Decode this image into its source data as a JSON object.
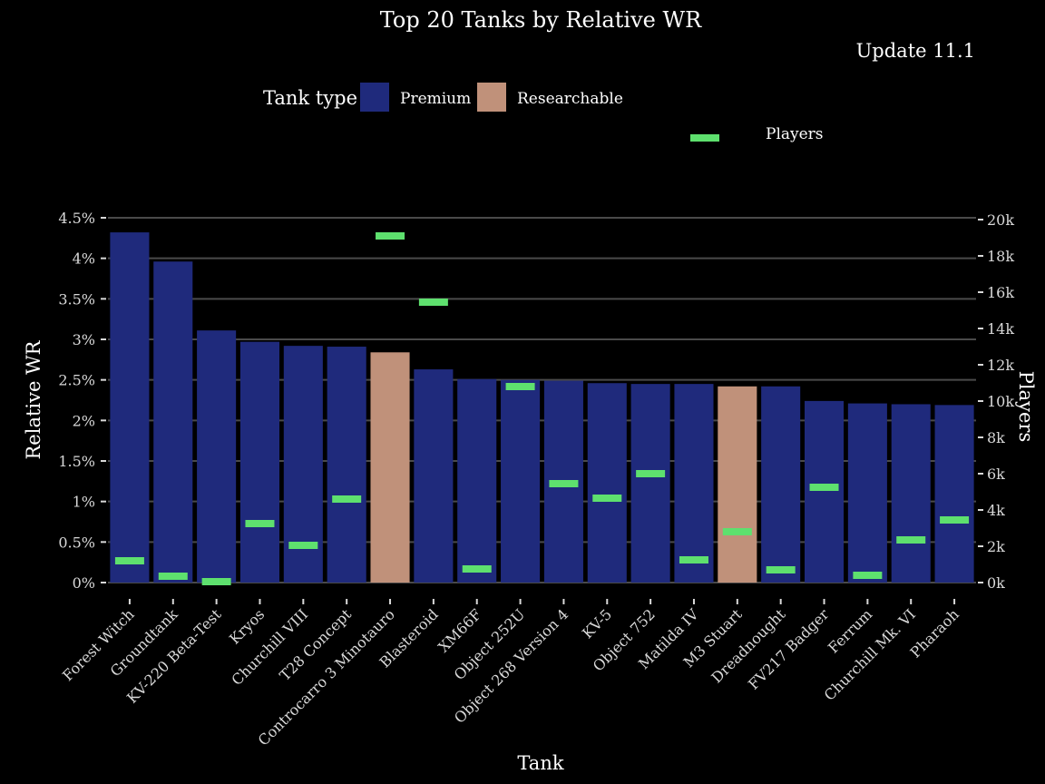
{
  "chart_data": {
    "type": "bar",
    "title": "Top 20 Tanks by Relative WR",
    "subtitle": "Update 11.1",
    "xlabel": "Tank",
    "ylabel": "Relative WR",
    "y2label": "Players",
    "ylim": [
      0,
      4.5
    ],
    "y2lim": [
      0,
      20000
    ],
    "yticks": [
      "0%",
      "0.5%",
      "1%",
      "1.5%",
      "2%",
      "2.5%",
      "3%",
      "3.5%",
      "4%",
      "4.5%"
    ],
    "y2ticks": [
      "0k",
      "2k",
      "4k",
      "6k",
      "8k",
      "10k",
      "12k",
      "14k",
      "16k",
      "18k",
      "20k"
    ],
    "grid": true,
    "legend": {
      "title": "Tank type",
      "placement": "top",
      "items": [
        {
          "label": "Premium",
          "color": "#1f2a7c"
        },
        {
          "label": "Researchable",
          "color": "#c0917a"
        }
      ],
      "players_label": "Players",
      "players_color": "#5ee06e"
    },
    "categories": [
      "Forest Witch",
      "Groundtank",
      "KV-220 Beta-Test",
      "Kryos",
      "Churchill VIII",
      "T28 Concept",
      "Controcarro 3 Minotauro",
      "Blasteroid",
      "XM66F",
      "Object 252U",
      "Object 268 Version 4",
      "KV-5",
      "Object 752",
      "Matilda IV",
      "M3 Stuart",
      "Dreadnought",
      "FV217 Badger",
      "Ferrum",
      "Churchill Mk. VI",
      "Pharaoh"
    ],
    "types": [
      "Premium",
      "Premium",
      "Premium",
      "Premium",
      "Premium",
      "Premium",
      "Researchable",
      "Premium",
      "Premium",
      "Premium",
      "Premium",
      "Premium",
      "Premium",
      "Premium",
      "Researchable",
      "Premium",
      "Premium",
      "Premium",
      "Premium",
      "Premium"
    ],
    "series": [
      {
        "name": "Relative WR",
        "axis": "left",
        "values": [
          4.32,
          3.96,
          3.11,
          2.97,
          2.92,
          2.91,
          2.84,
          2.63,
          2.51,
          2.5,
          2.49,
          2.46,
          2.45,
          2.45,
          2.42,
          2.42,
          2.24,
          2.21,
          2.2,
          2.19
        ]
      },
      {
        "name": "Players",
        "axis": "right",
        "values": [
          1200,
          350,
          50,
          3250,
          2050,
          4600,
          19100,
          15450,
          750,
          10800,
          5450,
          4650,
          6000,
          1250,
          2800,
          700,
          5250,
          400,
          2350,
          3450
        ]
      }
    ]
  }
}
